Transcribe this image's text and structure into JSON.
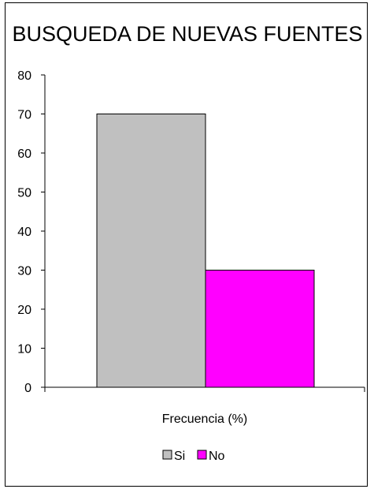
{
  "chart_data": {
    "type": "bar",
    "title": "BUSQUEDA DE NUEVAS FUENTES",
    "xlabel": "Frecuencia (%)",
    "ylabel": "",
    "ylim": [
      0,
      80
    ],
    "yticks": [
      "0",
      "10",
      "20",
      "30",
      "40",
      "50",
      "60",
      "70",
      "80"
    ],
    "grid": false,
    "legend_position": "bottom",
    "series": [
      {
        "name": "Si",
        "value": 70,
        "color": "#c0c0c0"
      },
      {
        "name": "No",
        "value": 30,
        "color": "#ff00ff"
      }
    ]
  }
}
